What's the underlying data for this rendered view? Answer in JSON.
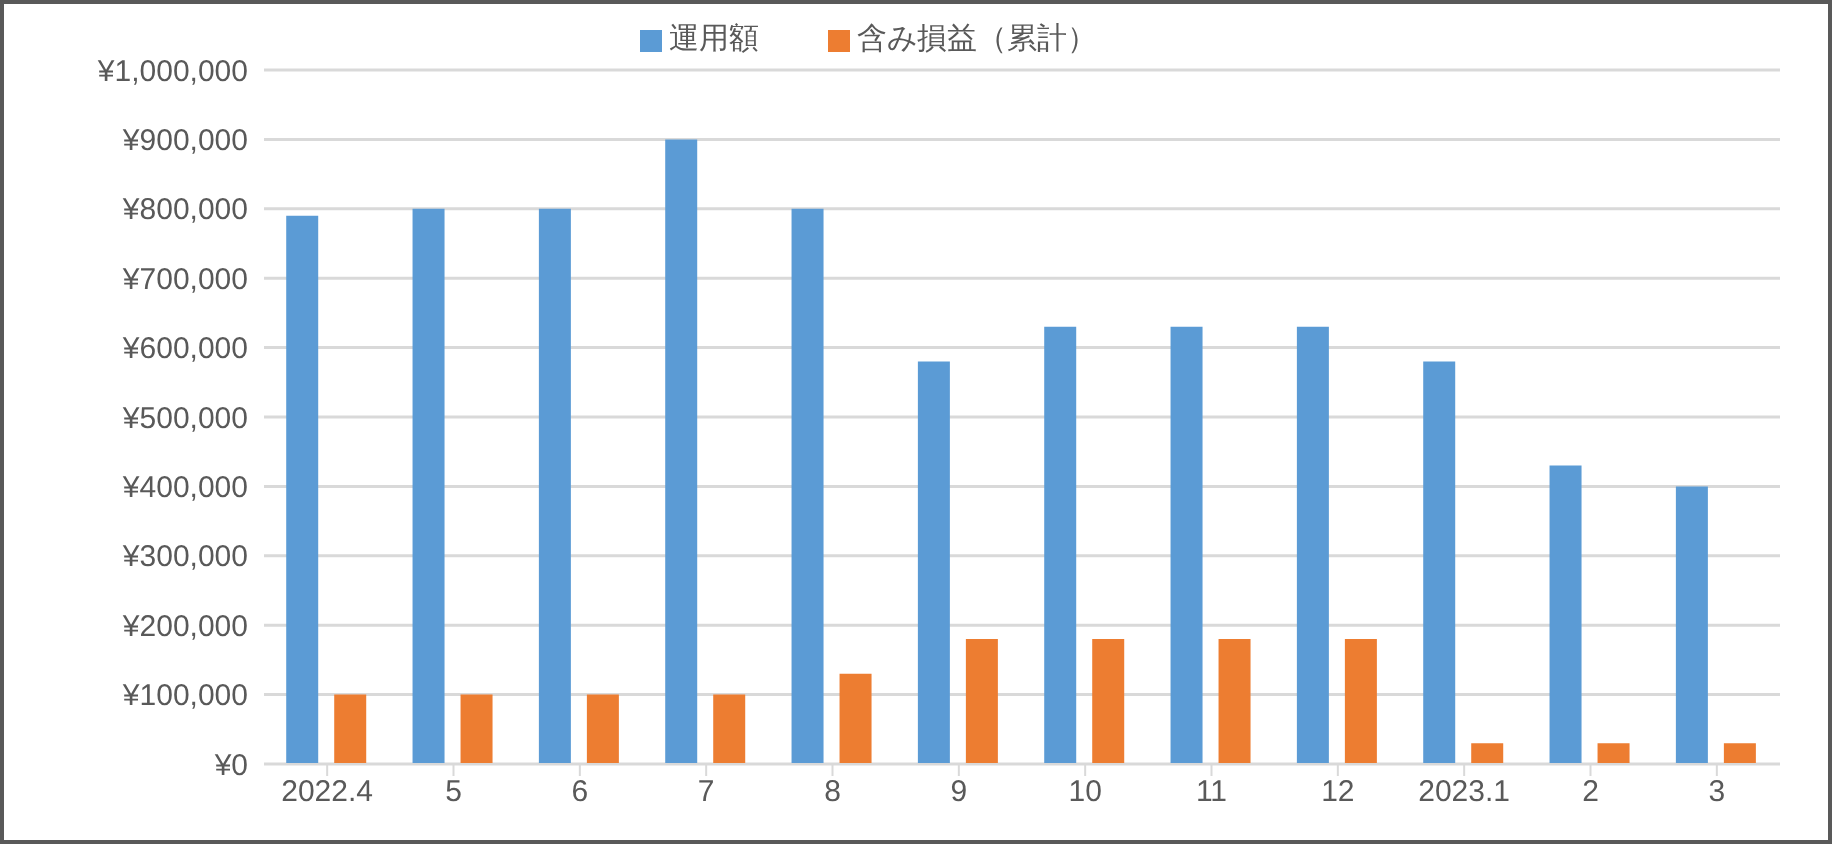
{
  "chart_data": {
    "type": "bar",
    "categories": [
      "2022.4",
      "5",
      "6",
      "7",
      "8",
      "9",
      "10",
      "11",
      "12",
      "2023.1",
      "2",
      "3"
    ],
    "series": [
      {
        "name": "運用額",
        "color": "#5b9bd5",
        "values": [
          790000,
          800000,
          800000,
          900000,
          800000,
          580000,
          630000,
          630000,
          630000,
          580000,
          430000,
          400000
        ]
      },
      {
        "name": "含み損益（累計）",
        "color": "#ed7d31",
        "values": [
          100000,
          100000,
          100000,
          100000,
          130000,
          180000,
          180000,
          180000,
          180000,
          30000,
          30000,
          30000
        ]
      }
    ],
    "ylim": [
      0,
      1000000
    ],
    "yticks": [
      {
        "value": 0,
        "label": "¥0"
      },
      {
        "value": 100000,
        "label": "¥100,000"
      },
      {
        "value": 200000,
        "label": "¥200,000"
      },
      {
        "value": 300000,
        "label": "¥300,000"
      },
      {
        "value": 400000,
        "label": "¥400,000"
      },
      {
        "value": 500000,
        "label": "¥500,000"
      },
      {
        "value": 600000,
        "label": "¥600,000"
      },
      {
        "value": 700000,
        "label": "¥700,000"
      },
      {
        "value": 800000,
        "label": "¥800,000"
      },
      {
        "value": 900000,
        "label": "¥900,000"
      },
      {
        "value": 1000000,
        "label": "¥1,000,000"
      }
    ],
    "grid": "y",
    "legend": "top"
  }
}
